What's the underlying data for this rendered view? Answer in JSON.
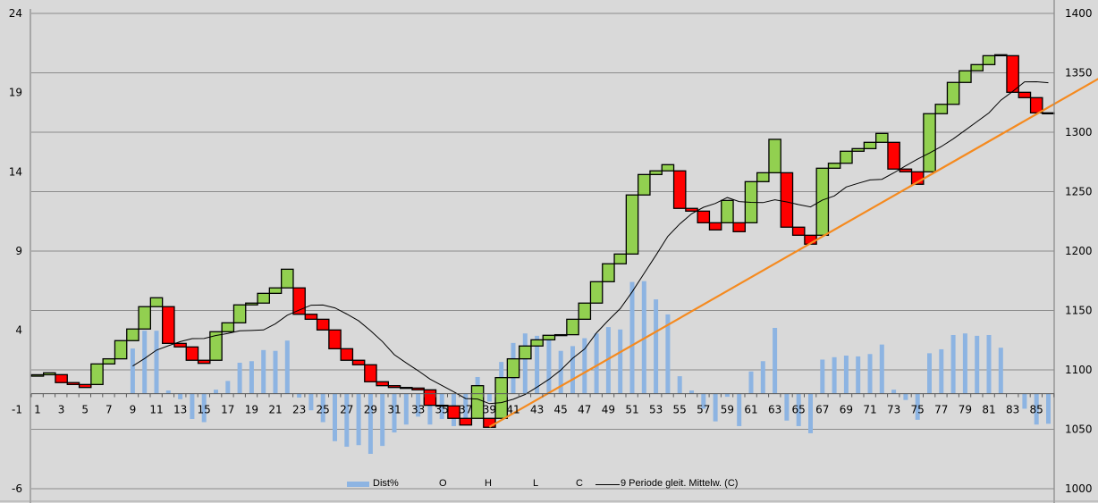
{
  "chart_data": {
    "type": "bar",
    "subtype": "ohlc-candlestick-with-bars-and-moving-average",
    "title": "",
    "x": {
      "categories_from": 1,
      "categories_to": 86,
      "tick_labels_every": 2
    },
    "y_left": {
      "min": -6,
      "max": 24,
      "step": 5,
      "ticks": [
        "-6",
        "-1",
        "4",
        "9",
        "14",
        "19",
        "24"
      ]
    },
    "y_right": {
      "min": 1000,
      "max": 1400,
      "step": 50,
      "ticks": [
        "1000",
        "1050",
        "1100",
        "1150",
        "1200",
        "1250",
        "1300",
        "1350",
        "1400"
      ]
    },
    "grid": "horizontal (right axis)",
    "legend_position": "bottom",
    "legend": {
      "dist": "Dist%",
      "o": "O",
      "h": "H",
      "l": "L",
      "c": "C",
      "ma": "9 Periode gleit. Mittelw. (C)"
    },
    "ma_period": 9,
    "colors": {
      "up": "#92d050",
      "down": "#ff0000",
      "bars": "#8db4e2",
      "ma": "#000000",
      "trend": "#f58a1f",
      "grid": "#8c8c8c",
      "background": "#d9d9d9"
    },
    "series": [
      {
        "name": "Dist%",
        "axis": "left",
        "values": [
          null,
          null,
          null,
          null,
          null,
          null,
          null,
          null,
          2.85,
          3.97,
          3.97,
          0.2,
          -0.35,
          -1.6,
          -1.8,
          0.25,
          0.8,
          1.95,
          2.05,
          2.75,
          2.7,
          3.35,
          -0.25,
          -1.05,
          -1.8,
          -3.0,
          -3.35,
          -3.25,
          -3.8,
          -3.3,
          -2.45,
          -1.95,
          -1.45,
          -1.95,
          -1.6,
          -2.05,
          -1.7,
          1.05,
          -0.5,
          2.0,
          3.2,
          3.8,
          3.65,
          3.4,
          2.7,
          3.0,
          3.5,
          3.8,
          4.2,
          4.05,
          7.05,
          7.1,
          5.95,
          5.0,
          1.1,
          0.2,
          -0.95,
          -1.75,
          -0.2,
          -2.05,
          1.4,
          2.05,
          4.15,
          -1.7,
          -2.05,
          -2.5,
          2.15,
          2.3,
          2.4,
          2.35,
          2.5,
          3.1,
          0.25,
          -0.4,
          -1.65,
          2.55,
          2.8,
          3.7,
          3.8,
          3.65,
          3.7,
          2.9,
          0,
          -0.95,
          -1.95,
          -1.9
        ]
      },
      {
        "name": "O",
        "axis": "right",
        "values": [
          1094.7,
          1095.9,
          1096.0,
          1089.3,
          1087.7,
          1087.7,
          1105.0,
          1109.3,
          1124.6,
          1134.4,
          1153.2,
          1153.2,
          1122.3,
          1119.3,
          1108.1,
          1108.1,
          1132.1,
          1139.6,
          1154.7,
          1156.2,
          1164.4,
          1169.0,
          1169.0,
          1146.8,
          1142.6,
          1133.6,
          1117.8,
          1108.1,
          1104.3,
          1090.0,
          1086.7,
          1085.2,
          1084.7,
          1083.2,
          1070.2,
          1069.7,
          1059.2,
          1059.2,
          1059.2,
          1059.2,
          1093.5,
          1109.3,
          1120.1,
          1125.3,
          1129.1,
          1129.6,
          1142.6,
          1156.2,
          1174.2,
          1189.3,
          1197.5,
          1247.2,
          1264.4,
          1267.5,
          1267.5,
          1235.9,
          1233.6,
          1223.8,
          1223.8,
          1223.8,
          1223.8,
          1258.4,
          1265.9,
          1265.9,
          1220.1,
          1213.3,
          1213.3,
          1269.7,
          1273.9,
          1284.0,
          1286.2,
          1291.5,
          1291.5,
          1269.0,
          1266.7,
          1266.7,
          1315.6,
          1323.5,
          1341.9,
          1351.7,
          1356.9,
          1364.4,
          1364.4,
          1333.6,
          1329.1,
          1316.3
        ]
      },
      {
        "name": "C",
        "axis": "right",
        "values": [
          1095.9,
          1097.5,
          1089.3,
          1087.7,
          1085.2,
          1105.0,
          1109.3,
          1124.6,
          1134.4,
          1153.2,
          1160.7,
          1122.3,
          1119.3,
          1108.1,
          1105.5,
          1132.1,
          1139.6,
          1154.7,
          1156.2,
          1164.4,
          1169.0,
          1184.7,
          1146.8,
          1142.6,
          1133.6,
          1117.8,
          1108.1,
          1104.3,
          1090.0,
          1086.7,
          1085.2,
          1084.7,
          1083.2,
          1070.2,
          1069.7,
          1059.2,
          1053.6,
          1086.7,
          1051.7,
          1093.5,
          1109.3,
          1120.1,
          1125.3,
          1129.1,
          1129.6,
          1142.6,
          1156.2,
          1174.2,
          1189.3,
          1197.5,
          1247.2,
          1264.4,
          1267.5,
          1272.7,
          1235.9,
          1233.6,
          1223.8,
          1217.8,
          1242.6,
          1216.3,
          1258.4,
          1265.9,
          1294.0,
          1220.1,
          1213.3,
          1205.8,
          1269.7,
          1273.9,
          1284.0,
          1286.2,
          1291.5,
          1299.0,
          1269.0,
          1266.7,
          1256.2,
          1315.6,
          1323.5,
          1341.9,
          1351.7,
          1356.9,
          1364.4,
          1365.2,
          1333.6,
          1329.1,
          1316.3,
          1315.8
        ]
      }
    ],
    "trendline": {
      "axis": "right",
      "from": {
        "x": 39,
        "y": 1052
      },
      "to": {
        "x": 90.2,
        "y": 1345
      }
    }
  }
}
